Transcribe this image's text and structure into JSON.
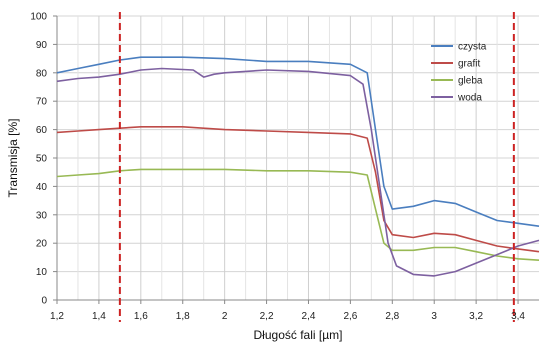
{
  "chart_data": {
    "type": "line",
    "xlabel": "Długość fali [µm]",
    "ylabel": "Transmisja [%]",
    "xlim": [
      1.2,
      3.5
    ],
    "ylim": [
      0,
      100
    ],
    "x_ticks": [
      "1,2",
      "1,4",
      "1,6",
      "1,8",
      "2",
      "2,2",
      "2,4",
      "2,6",
      "2,8",
      "3",
      "3,2",
      "3,4"
    ],
    "y_ticks": [
      "0",
      "10",
      "20",
      "30",
      "40",
      "50",
      "60",
      "70",
      "80",
      "90",
      "100"
    ],
    "grid": true,
    "legend": "top-right",
    "series": [
      {
        "name": "czysta",
        "color": "#4a7ebf",
        "x": [
          1.2,
          1.3,
          1.4,
          1.5,
          1.6,
          1.8,
          2.0,
          2.2,
          2.4,
          2.6,
          2.68,
          2.72,
          2.76,
          2.8,
          2.9,
          3.0,
          3.1,
          3.2,
          3.3,
          3.4,
          3.5
        ],
        "y": [
          80,
          81.5,
          83,
          84.5,
          85.5,
          85.5,
          85,
          84,
          84,
          83,
          80,
          60,
          40,
          32,
          33,
          35,
          34,
          31,
          28,
          27,
          26
        ]
      },
      {
        "name": "grafit",
        "color": "#be4b48",
        "x": [
          1.2,
          1.3,
          1.4,
          1.5,
          1.6,
          1.8,
          2.0,
          2.2,
          2.4,
          2.6,
          2.68,
          2.72,
          2.76,
          2.8,
          2.9,
          3.0,
          3.1,
          3.2,
          3.3,
          3.4,
          3.5
        ],
        "y": [
          59,
          59.5,
          60,
          60.5,
          61,
          61,
          60,
          59.5,
          59,
          58.5,
          57,
          45,
          28,
          23,
          22,
          23.5,
          23,
          21,
          19,
          18,
          17
        ]
      },
      {
        "name": "gleba",
        "color": "#98b954",
        "x": [
          1.2,
          1.3,
          1.4,
          1.5,
          1.6,
          1.8,
          2.0,
          2.2,
          2.4,
          2.6,
          2.68,
          2.72,
          2.76,
          2.8,
          2.9,
          3.0,
          3.1,
          3.2,
          3.3,
          3.4,
          3.5
        ],
        "y": [
          43.5,
          44,
          44.5,
          45.5,
          46,
          46,
          46,
          45.5,
          45.5,
          45,
          44,
          32,
          20,
          17.5,
          17.5,
          18.5,
          18.5,
          17,
          15.5,
          14.5,
          14
        ]
      },
      {
        "name": "woda",
        "color": "#7d60a0",
        "x": [
          1.2,
          1.3,
          1.4,
          1.5,
          1.6,
          1.7,
          1.85,
          1.9,
          1.95,
          2.0,
          2.2,
          2.4,
          2.6,
          2.66,
          2.7,
          2.74,
          2.78,
          2.82,
          2.9,
          3.0,
          3.1,
          3.2,
          3.3,
          3.4,
          3.5
        ],
        "y": [
          77,
          78,
          78.5,
          79.5,
          81,
          81.5,
          81,
          78.5,
          79.5,
          80,
          81,
          80.5,
          79,
          76,
          60,
          40,
          20,
          12,
          9,
          8.5,
          10,
          13,
          16,
          19,
          21
        ]
      }
    ],
    "markers": {
      "color": "#cc2222",
      "x": [
        1.5,
        3.38
      ]
    }
  }
}
